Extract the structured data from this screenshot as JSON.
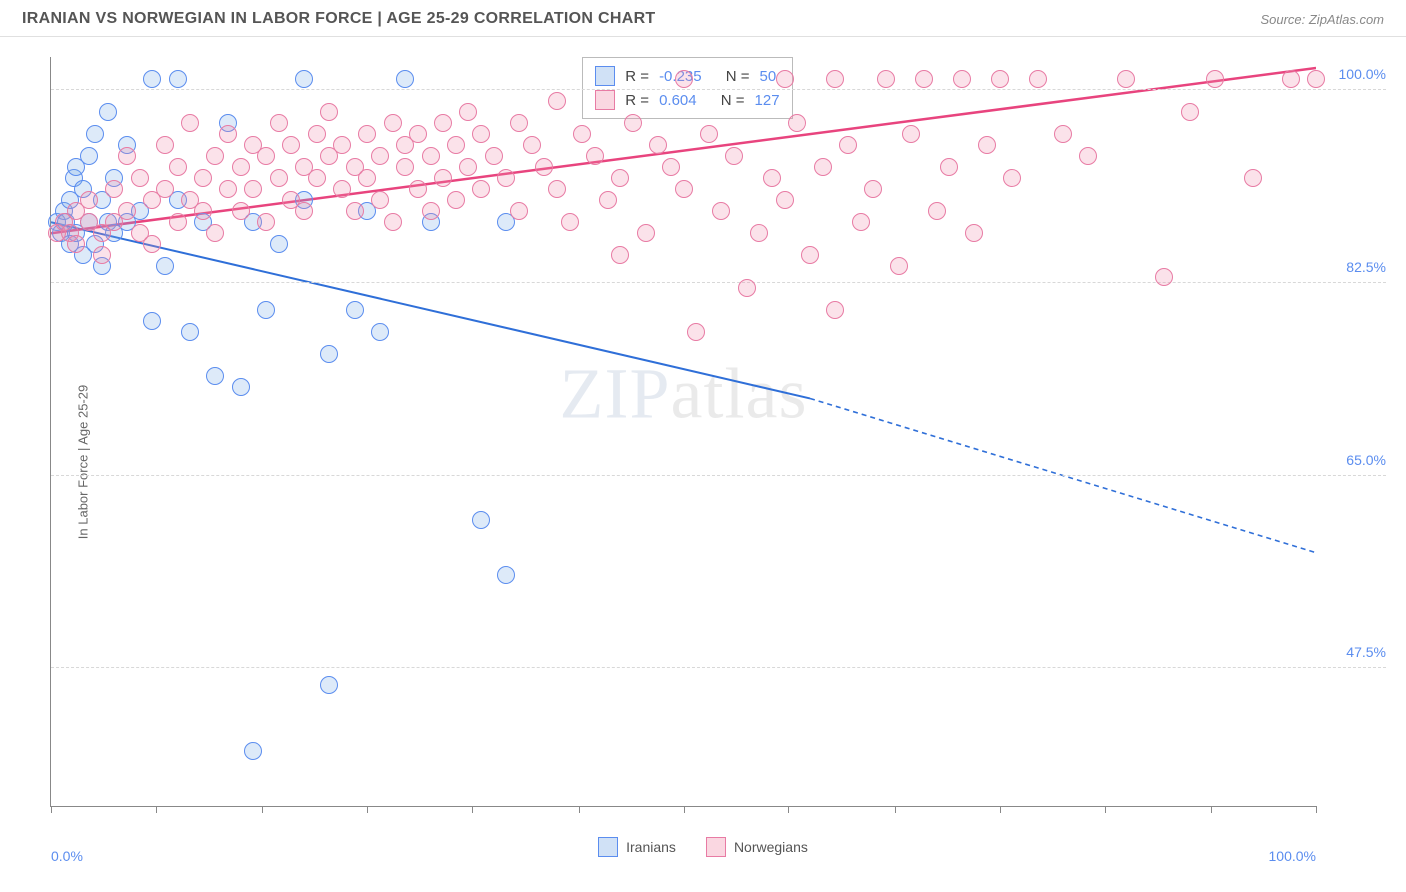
{
  "header": {
    "title": "IRANIAN VS NORWEGIAN IN LABOR FORCE | AGE 25-29 CORRELATION CHART",
    "source": "Source: ZipAtlas.com"
  },
  "ylabel": "In Labor Force | Age 25-29",
  "watermark_a": "ZIP",
  "watermark_b": "atlas",
  "chart": {
    "type": "scatter",
    "xlim": [
      0,
      100
    ],
    "ylim": [
      35,
      103
    ],
    "x_ticks": [
      0,
      8.3,
      16.7,
      25,
      33.3,
      41.7,
      50,
      58.3,
      66.7,
      75,
      83.3,
      91.7,
      100
    ],
    "x_tick_labels": {
      "0": "0.0%",
      "100": "100.0%"
    },
    "y_grid": [
      47.5,
      65.0,
      82.5,
      100.0
    ],
    "y_tick_labels": {
      "47.5": "47.5%",
      "65.0": "65.0%",
      "82.5": "82.5%",
      "100.0": "100.0%"
    },
    "grid_color": "#d8d8d8",
    "background_color": "#ffffff",
    "marker_radius": 9,
    "series": [
      {
        "name": "Iranians",
        "color_fill": "rgba(120,170,230,0.25)",
        "color_stroke": "#5b8def",
        "R": "-0.235",
        "N": "50",
        "trend": {
          "x1": 0,
          "y1": 88,
          "x2": 60,
          "y2": 72,
          "x2_ext": 100,
          "y2_ext": 58,
          "color": "#2f6fd8",
          "width": 2
        },
        "points": [
          [
            0.5,
            88
          ],
          [
            0.8,
            87
          ],
          [
            1,
            89
          ],
          [
            1.2,
            88
          ],
          [
            1.5,
            86
          ],
          [
            1.5,
            90
          ],
          [
            1.8,
            92
          ],
          [
            2,
            93
          ],
          [
            2,
            87
          ],
          [
            2.5,
            85
          ],
          [
            2.5,
            91
          ],
          [
            3,
            88
          ],
          [
            3,
            94
          ],
          [
            3.5,
            86
          ],
          [
            3.5,
            96
          ],
          [
            4,
            84
          ],
          [
            4,
            90
          ],
          [
            4.5,
            98
          ],
          [
            4.5,
            88
          ],
          [
            5,
            92
          ],
          [
            5,
            87
          ],
          [
            6,
            88
          ],
          [
            6,
            95
          ],
          [
            7,
            89
          ],
          [
            8,
            79
          ],
          [
            8,
            101
          ],
          [
            9,
            84
          ],
          [
            10,
            101
          ],
          [
            10,
            90
          ],
          [
            11,
            78
          ],
          [
            12,
            88
          ],
          [
            13,
            74
          ],
          [
            14,
            97
          ],
          [
            15,
            73
          ],
          [
            16,
            88
          ],
          [
            16,
            40
          ],
          [
            17,
            80
          ],
          [
            18,
            86
          ],
          [
            20,
            101
          ],
          [
            20,
            90
          ],
          [
            22,
            76
          ],
          [
            22,
            46
          ],
          [
            24,
            80
          ],
          [
            25,
            89
          ],
          [
            26,
            78
          ],
          [
            28,
            101
          ],
          [
            30,
            88
          ],
          [
            34,
            61
          ],
          [
            36,
            56
          ],
          [
            36,
            88
          ]
        ]
      },
      {
        "name": "Norwegians",
        "color_fill": "rgba(240,140,170,0.25)",
        "color_stroke": "#e87ba4",
        "R": "0.604",
        "N": "127",
        "trend": {
          "x1": 0,
          "y1": 87,
          "x2": 100,
          "y2": 102,
          "color": "#e8447e",
          "width": 2.5
        },
        "points": [
          [
            0.5,
            87
          ],
          [
            1,
            88
          ],
          [
            1.5,
            87
          ],
          [
            2,
            89
          ],
          [
            2,
            86
          ],
          [
            3,
            88
          ],
          [
            3,
            90
          ],
          [
            4,
            87
          ],
          [
            4,
            85
          ],
          [
            5,
            88
          ],
          [
            5,
            91
          ],
          [
            6,
            89
          ],
          [
            6,
            94
          ],
          [
            7,
            87
          ],
          [
            7,
            92
          ],
          [
            8,
            90
          ],
          [
            8,
            86
          ],
          [
            9,
            91
          ],
          [
            9,
            95
          ],
          [
            10,
            88
          ],
          [
            10,
            93
          ],
          [
            11,
            90
          ],
          [
            11,
            97
          ],
          [
            12,
            89
          ],
          [
            12,
            92
          ],
          [
            13,
            94
          ],
          [
            13,
            87
          ],
          [
            14,
            91
          ],
          [
            14,
            96
          ],
          [
            15,
            93
          ],
          [
            15,
            89
          ],
          [
            16,
            95
          ],
          [
            16,
            91
          ],
          [
            17,
            88
          ],
          [
            17,
            94
          ],
          [
            18,
            92
          ],
          [
            18,
            97
          ],
          [
            19,
            90
          ],
          [
            19,
            95
          ],
          [
            20,
            93
          ],
          [
            20,
            89
          ],
          [
            21,
            96
          ],
          [
            21,
            92
          ],
          [
            22,
            94
          ],
          [
            22,
            98
          ],
          [
            23,
            91
          ],
          [
            23,
            95
          ],
          [
            24,
            89
          ],
          [
            24,
            93
          ],
          [
            25,
            96
          ],
          [
            25,
            92
          ],
          [
            26,
            94
          ],
          [
            26,
            90
          ],
          [
            27,
            97
          ],
          [
            27,
            88
          ],
          [
            28,
            95
          ],
          [
            28,
            93
          ],
          [
            29,
            91
          ],
          [
            29,
            96
          ],
          [
            30,
            94
          ],
          [
            30,
            89
          ],
          [
            31,
            97
          ],
          [
            31,
            92
          ],
          [
            32,
            95
          ],
          [
            32,
            90
          ],
          [
            33,
            98
          ],
          [
            33,
            93
          ],
          [
            34,
            91
          ],
          [
            34,
            96
          ],
          [
            35,
            94
          ],
          [
            36,
            92
          ],
          [
            37,
            97
          ],
          [
            37,
            89
          ],
          [
            38,
            95
          ],
          [
            39,
            93
          ],
          [
            40,
            91
          ],
          [
            40,
            99
          ],
          [
            41,
            88
          ],
          [
            42,
            96
          ],
          [
            43,
            94
          ],
          [
            44,
            90
          ],
          [
            45,
            92
          ],
          [
            45,
            85
          ],
          [
            46,
            97
          ],
          [
            47,
            87
          ],
          [
            48,
            95
          ],
          [
            49,
            93
          ],
          [
            50,
            91
          ],
          [
            50,
            101
          ],
          [
            51,
            78
          ],
          [
            52,
            96
          ],
          [
            53,
            89
          ],
          [
            54,
            94
          ],
          [
            55,
            82
          ],
          [
            56,
            87
          ],
          [
            57,
            92
          ],
          [
            58,
            90
          ],
          [
            58,
            101
          ],
          [
            59,
            97
          ],
          [
            60,
            85
          ],
          [
            61,
            93
          ],
          [
            62,
            101
          ],
          [
            62,
            80
          ],
          [
            63,
            95
          ],
          [
            64,
            88
          ],
          [
            65,
            91
          ],
          [
            66,
            101
          ],
          [
            67,
            84
          ],
          [
            68,
            96
          ],
          [
            69,
            101
          ],
          [
            70,
            89
          ],
          [
            71,
            93
          ],
          [
            72,
            101
          ],
          [
            73,
            87
          ],
          [
            74,
            95
          ],
          [
            75,
            101
          ],
          [
            76,
            92
          ],
          [
            78,
            101
          ],
          [
            80,
            96
          ],
          [
            82,
            94
          ],
          [
            85,
            101
          ],
          [
            88,
            83
          ],
          [
            90,
            98
          ],
          [
            92,
            101
          ],
          [
            95,
            92
          ],
          [
            98,
            101
          ],
          [
            100,
            101
          ]
        ]
      }
    ]
  },
  "legend": {
    "r_label": "R =",
    "n_label": "N ="
  },
  "bottom_legend": [
    "Iranians",
    "Norwegians"
  ]
}
